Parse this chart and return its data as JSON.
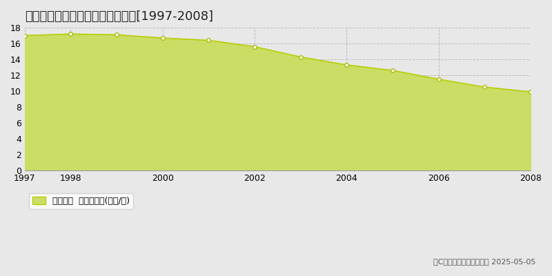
{
  "title": "宮城郡利府町春日　基準地価推移[1997-2008]",
  "years": [
    1997,
    1998,
    1999,
    2000,
    2001,
    2002,
    2003,
    2004,
    2005,
    2006,
    2007,
    2008
  ],
  "values": [
    17.0,
    17.2,
    17.1,
    16.7,
    16.4,
    15.6,
    14.3,
    13.3,
    12.6,
    11.5,
    10.5,
    9.9
  ],
  "ylim": [
    0,
    18
  ],
  "yticks": [
    0,
    2,
    4,
    6,
    8,
    10,
    12,
    14,
    16,
    18
  ],
  "xticks": [
    1997,
    1998,
    2000,
    2002,
    2004,
    2006,
    2008
  ],
  "line_color": "#b8cc00",
  "fill_color": "#ccdd66",
  "marker_facecolor": "#ffffff",
  "marker_edgecolor": "#a8bc00",
  "plot_bg_color": "#e8e8e8",
  "fig_bg_color": "#e8e8e8",
  "grid_color": "#bbbbbb",
  "legend_label": "基準地価  平均坪単価(万円/坪)",
  "copyright_text": "（C）土地価格ドットコム 2025-05-05",
  "title_fontsize": 13,
  "axis_fontsize": 9,
  "legend_fontsize": 9,
  "copyright_fontsize": 8
}
